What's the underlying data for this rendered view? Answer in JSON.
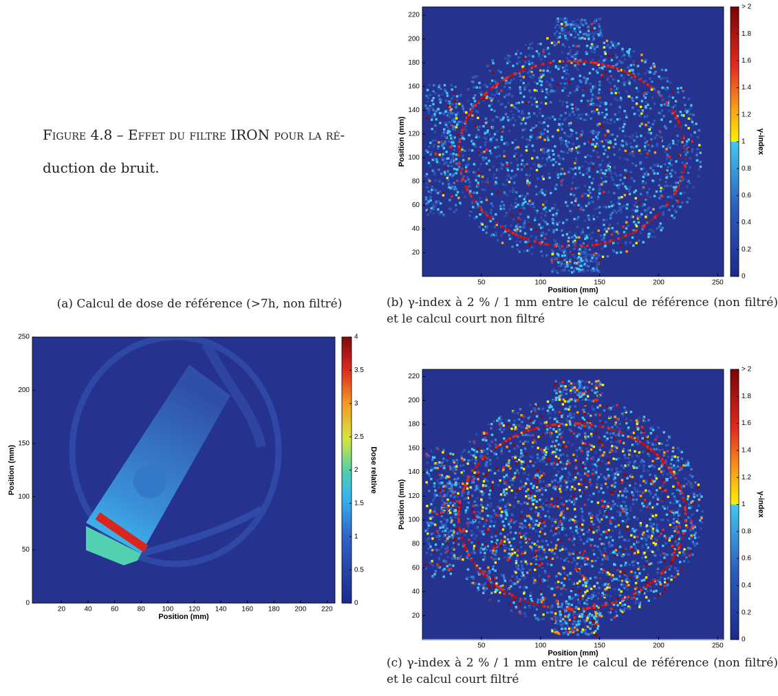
{
  "figure": {
    "caption_lines": [
      "Figure 4.8 – Effet du filtre IRON pour la ré-",
      "duction de bruit."
    ]
  },
  "panels": [
    {
      "caption": "(a) Calcul de dose de référence (>7h, non filtré)",
      "xlabel": "Position (mm)",
      "ylabel": "Position (mm)",
      "cbar_label": "Dose relative",
      "xlim": [
        -2,
        226
      ],
      "xticks": [
        20,
        40,
        60,
        80,
        100,
        120,
        140,
        160,
        180,
        200,
        220
      ],
      "ylim": [
        0,
        250
      ],
      "yticks": [
        0,
        50,
        100,
        150,
        200,
        250
      ],
      "cbar_lim": [
        0,
        4
      ],
      "cbar_ticks": [
        0,
        0.5,
        1,
        1.5,
        2,
        2.5,
        3,
        3.5,
        4
      ]
    },
    {
      "caption": "(b) γ-index à 2 % / 1 mm entre le calcul de référence (non filtré) et le calcul court non filtré",
      "xlabel": "Position (mm)",
      "ylabel": "Position (mm)",
      "cbar_label": "γ-index",
      "xlim": [
        0,
        255
      ],
      "xticks": [
        50,
        100,
        150,
        200,
        250
      ],
      "ylim": [
        0,
        227
      ],
      "yticks": [
        20,
        40,
        60,
        80,
        100,
        120,
        140,
        160,
        180,
        200,
        220
      ],
      "cbar_lim": [
        0,
        2
      ],
      "cbar_ticks": [
        0,
        0.2,
        0.4,
        0.6,
        0.8,
        1,
        1.2,
        1.4,
        1.6,
        1.8,
        {
          "value": 2,
          "label": "> 2"
        }
      ]
    },
    {
      "caption": "(c) γ-index à 2 % / 1 mm entre le calcul de référence (non filtré) et le calcul court filtré",
      "xlabel": "Position (mm)",
      "ylabel": "Position (mm)",
      "cbar_label": "γ-index",
      "xlim": [
        0,
        255
      ],
      "xticks": [
        50,
        100,
        150,
        200,
        250
      ],
      "ylim": [
        0,
        226
      ],
      "yticks": [
        20,
        40,
        60,
        80,
        100,
        120,
        140,
        160,
        180,
        200,
        220
      ],
      "cbar_lim": [
        0,
        2
      ],
      "cbar_ticks": [
        0,
        0.2,
        0.4,
        0.6,
        0.8,
        1,
        1.2,
        1.4,
        1.6,
        1.8,
        {
          "value": 2,
          "label": "> 2"
        }
      ]
    }
  ]
}
